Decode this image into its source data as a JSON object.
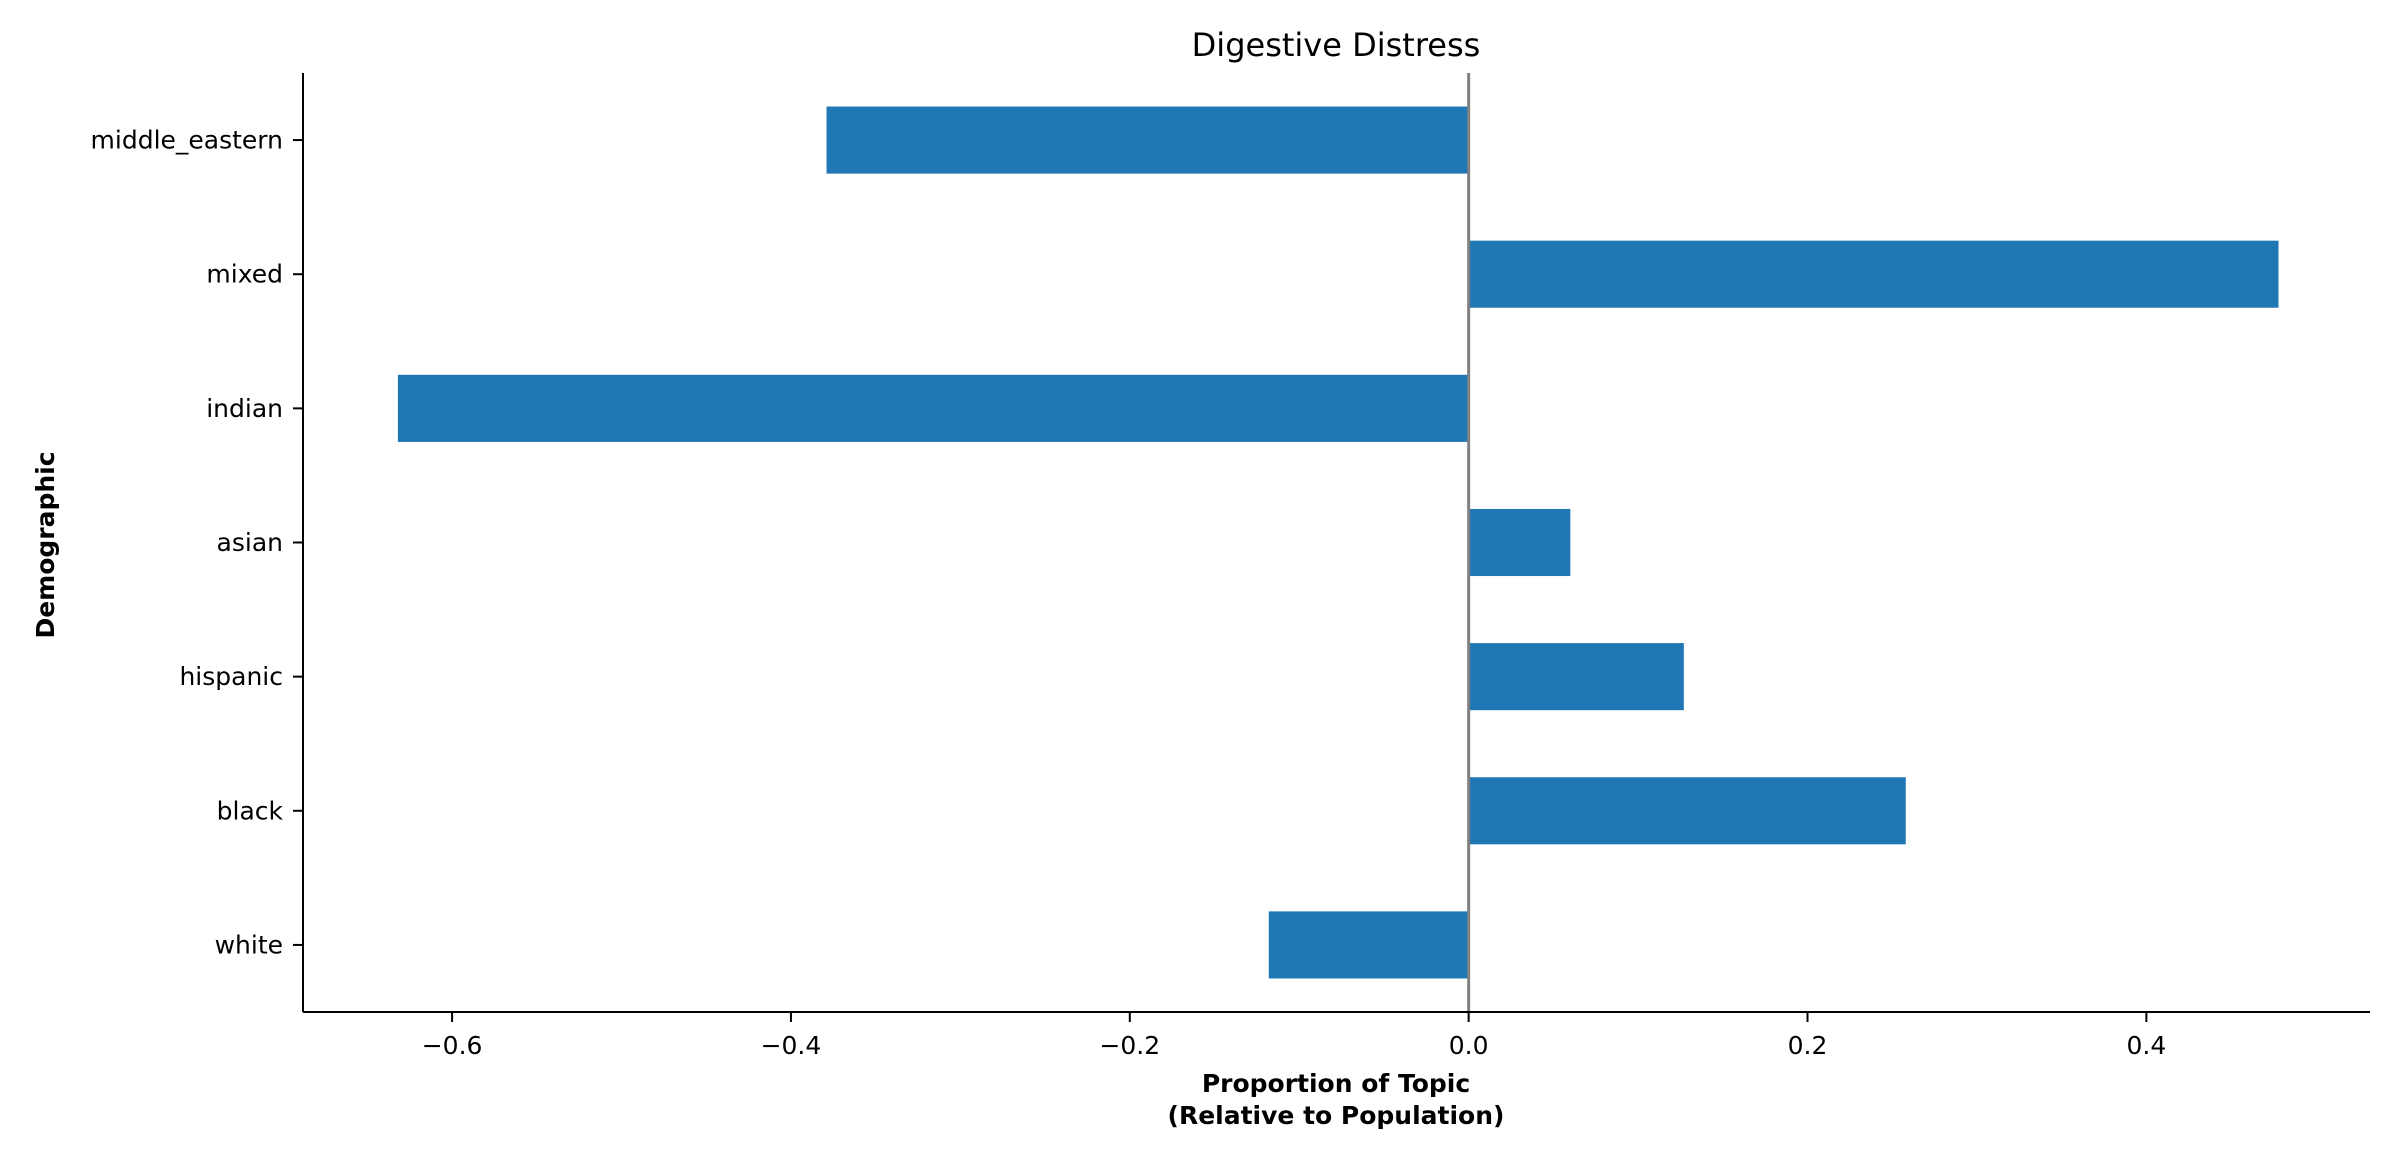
{
  "chart_data": {
    "type": "bar",
    "orientation": "horizontal",
    "title": "Digestive Distress",
    "xlabel_lines": [
      "Proportion of Topic",
      "(Relative to Population)"
    ],
    "ylabel": "Demographic",
    "categories": [
      "white",
      "black",
      "hispanic",
      "asian",
      "indian",
      "mixed",
      "middle_eastern"
    ],
    "values": [
      -0.118,
      0.258,
      0.127,
      0.06,
      -0.632,
      0.478,
      -0.379
    ],
    "xlim": [
      -0.688,
      0.532
    ],
    "xticks": [
      -0.6,
      -0.4,
      -0.2,
      0.0,
      0.2,
      0.4
    ],
    "xtick_labels": [
      "−0.6",
      "−0.4",
      "−0.2",
      "0.0",
      "0.2",
      "0.4"
    ],
    "bar_color": "#1f77b4",
    "zero_line_color": "#808080",
    "grid": false
  }
}
